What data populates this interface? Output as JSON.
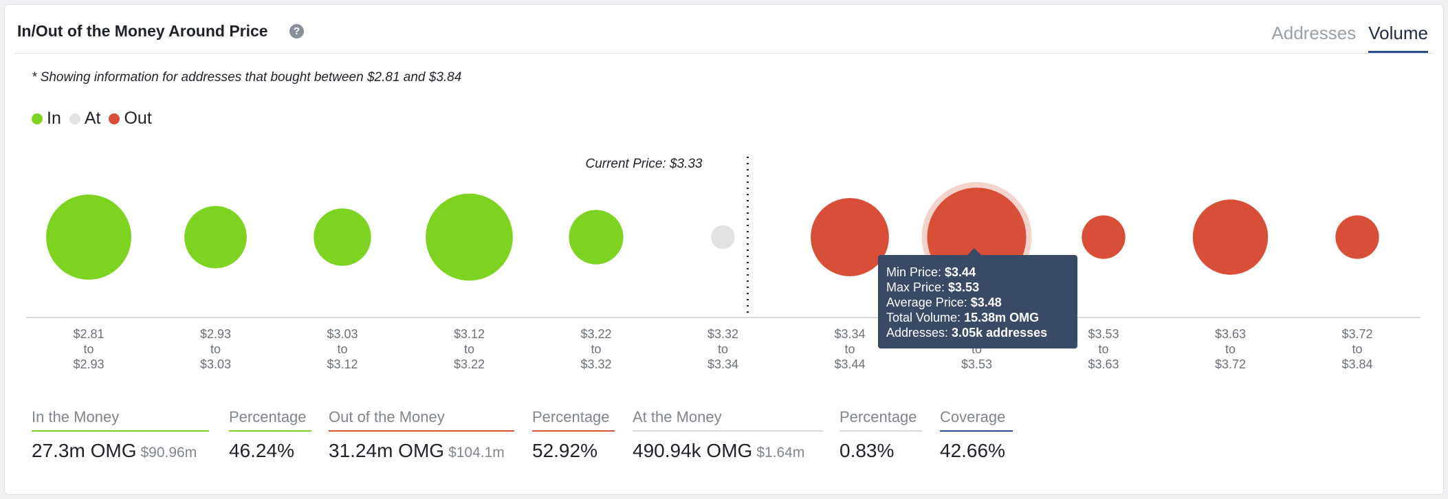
{
  "header": {
    "title": "In/Out of the Money Around Price",
    "help_glyph": "?",
    "tabs": [
      {
        "label": "Addresses",
        "active": false
      },
      {
        "label": "Volume",
        "active": true
      }
    ]
  },
  "note": "* Showing information for addresses that bought between $2.81 and $3.84",
  "legend": [
    {
      "label": "In",
      "color": "#7ed321"
    },
    {
      "label": "At",
      "color": "#e2e2e2"
    },
    {
      "label": "Out",
      "color": "#d94e37"
    }
  ],
  "colors": {
    "in": "#7ed321",
    "at": "#e2e2e2",
    "out": "#d94e37",
    "tooltip_bg": "#394a67"
  },
  "chart_data": {
    "type": "scatter",
    "title": "",
    "current_price_label": "Current Price: $3.33",
    "current_price": 3.33,
    "clusters": [
      {
        "from": "$2.81",
        "to": "$2.93",
        "status": "in"
      },
      {
        "from": "$2.93",
        "to": "$3.03",
        "status": "in"
      },
      {
        "from": "$3.03",
        "to": "$3.12",
        "status": "in"
      },
      {
        "from": "$3.12",
        "to": "$3.22",
        "status": "in"
      },
      {
        "from": "$3.22",
        "to": "$3.32",
        "status": "in"
      },
      {
        "from": "$3.32",
        "to": "$3.34",
        "status": "at"
      },
      {
        "from": "$3.34",
        "to": "$3.44",
        "status": "out"
      },
      {
        "from": "$3.44",
        "to": "$3.53",
        "status": "out",
        "highlighted": true
      },
      {
        "from": "$3.53",
        "to": "$3.63",
        "status": "out"
      },
      {
        "from": "$3.63",
        "to": "$3.72",
        "status": "out"
      },
      {
        "from": "$3.72",
        "to": "$3.84",
        "status": "out"
      }
    ],
    "relative_volume": [
      0.86,
      0.63,
      0.58,
      0.88,
      0.55,
      0.24,
      0.79,
      1.0,
      0.44,
      0.76,
      0.44
    ],
    "to_word": "to"
  },
  "tooltip": {
    "lines": [
      {
        "label": "Min Price: ",
        "value": "$3.44"
      },
      {
        "label": "Max Price: ",
        "value": "$3.53"
      },
      {
        "label": "Average Price: ",
        "value": "$3.48"
      },
      {
        "label": "Total Volume: ",
        "value": "15.38m OMG"
      },
      {
        "label": "Addresses: ",
        "value": "3.05k addresses"
      }
    ]
  },
  "stats": [
    {
      "label": "In the Money",
      "value": "27.3m OMG",
      "sub": "$90.96m",
      "line_color": "#7ed321"
    },
    {
      "label": "Percentage",
      "value": "46.24%",
      "sub": "",
      "line_color": "#7ed321"
    },
    {
      "label": "Out of the Money",
      "value": "31.24m OMG",
      "sub": "$104.1m",
      "line_color": "#d94e37"
    },
    {
      "label": "Percentage",
      "value": "52.92%",
      "sub": "",
      "line_color": "#d94e37"
    },
    {
      "label": "At the Money",
      "value": "490.94k OMG",
      "sub": "$1.64m",
      "line_color": "#d4d7dc"
    },
    {
      "label": "Percentage",
      "value": "0.83%",
      "sub": "",
      "line_color": "#d4d7dc"
    },
    {
      "label": "Coverage",
      "value": "42.66%",
      "sub": "",
      "line_color": "#2b4d8c"
    }
  ]
}
